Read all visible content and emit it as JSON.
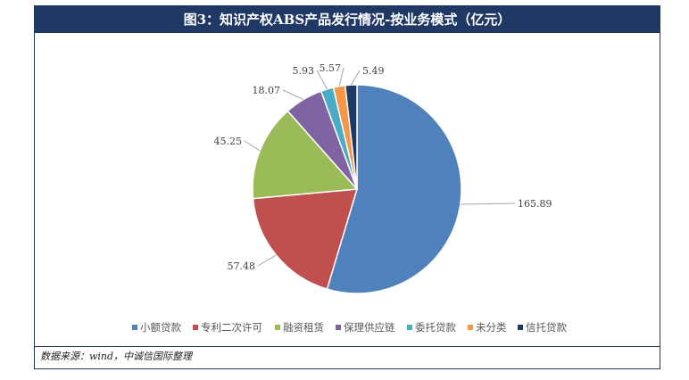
{
  "title": "图3：知识产权ABS产品发行情况-按业务模式（亿元）",
  "source": "数据来源：wind，中诚信国际整理",
  "chart_data": {
    "type": "pie",
    "title": "图3：知识产权ABS产品发行情况-按业务模式（亿元）",
    "series": [
      {
        "name": "小额贷款",
        "value": 165.89,
        "label": "165.89",
        "color": "#4f81bd"
      },
      {
        "name": "专利二次许可",
        "value": 57.48,
        "label": "57.48",
        "color": "#c0504d"
      },
      {
        "name": "融资租赁",
        "value": 45.25,
        "label": "45.25",
        "color": "#9bbb59"
      },
      {
        "name": "保理供应链",
        "value": 18.07,
        "label": "18.07",
        "color": "#8064a2"
      },
      {
        "name": "委托贷款",
        "value": 5.93,
        "label": "5.93",
        "color": "#4bacc6"
      },
      {
        "name": "未分类",
        "value": 5.57,
        "label": "5.57",
        "color": "#f79646"
      },
      {
        "name": "信托贷款",
        "value": 5.49,
        "label": "5.49",
        "color": "#1f3864"
      }
    ],
    "start_angle": "12 o'clock",
    "direction": "clockwise",
    "legend": "bottom"
  }
}
